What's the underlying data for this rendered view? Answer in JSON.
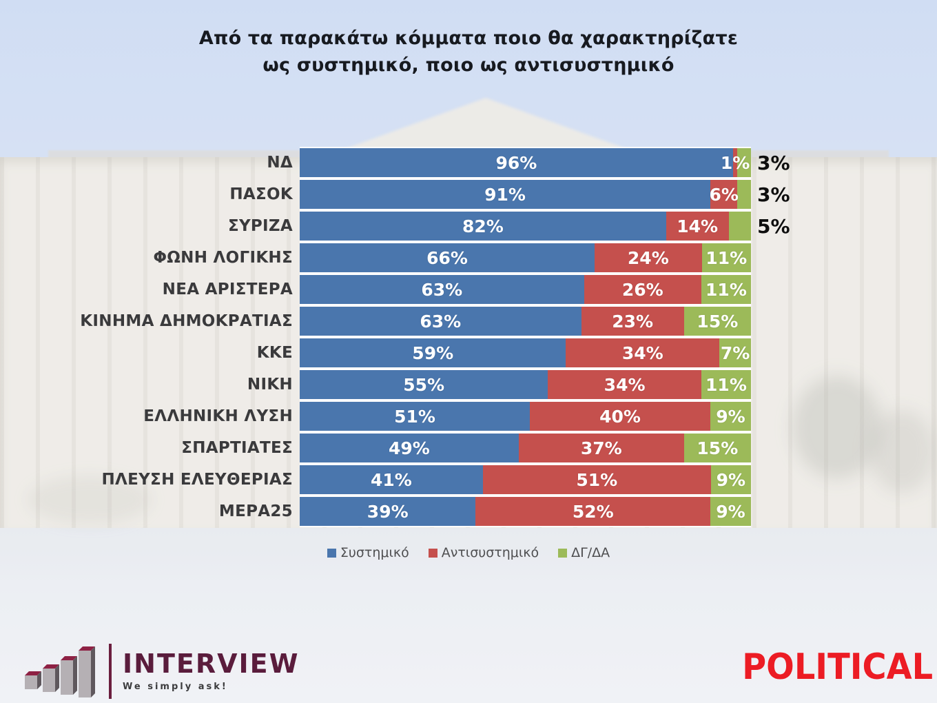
{
  "title": {
    "line1": "Από τα παρακάτω κόμματα ποιο θα χαρακτηρίζατε",
    "line2": "ως συστημικό, ποιο ως αντισυστημικό"
  },
  "chart_data": {
    "type": "bar",
    "orientation": "horizontal",
    "stacked": true,
    "grid": false,
    "legend_position": "bottom",
    "value_suffix": "%",
    "categories": [
      "ΝΔ",
      "ΠΑΣΟΚ",
      "ΣΥΡΙΖΑ",
      "ΦΩΝΗ ΛΟΓΙΚΗΣ",
      "ΝΕΑ ΑΡΙΣΤΕΡΑ",
      "ΚΙΝΗΜΑ ΔΗΜΟΚΡΑΤΙΑΣ",
      "ΚΚΕ",
      "ΝΙΚΗ",
      "ΕΛΛΗΝΙΚΗ ΛΥΣΗ",
      "ΣΠΑΡΤΙΑΤΕΣ",
      "ΠΛΕΥΣΗ ΕΛΕΥΘΕΡΙΑΣ",
      "ΜΕΡΑ25"
    ],
    "series": [
      {
        "name": "Συστημικό",
        "color": "#4a76ad",
        "values": [
          96,
          91,
          82,
          66,
          63,
          63,
          59,
          55,
          51,
          49,
          41,
          39
        ]
      },
      {
        "name": "Αντισυστημικό",
        "color": "#c5504d",
        "values": [
          1,
          6,
          14,
          24,
          26,
          23,
          34,
          34,
          40,
          37,
          51,
          52
        ]
      },
      {
        "name": "ΔΓ/ΔΑ",
        "color": "#9cba59",
        "values": [
          3,
          3,
          5,
          11,
          11,
          15,
          7,
          11,
          9,
          15,
          9,
          9
        ]
      }
    ],
    "outside_label_series_index": 2,
    "outside_label_rows": [
      0,
      1,
      2
    ],
    "inside_label_color": "#ffffff",
    "outside_label_color": "#0e0e0e"
  },
  "footer": {
    "interview": {
      "name": "INTERVIEW",
      "tagline": "We simply ask!"
    },
    "political": {
      "name": "POLITICAL"
    }
  },
  "logo_colors": {
    "interview_maroon": "#5a1c3c",
    "interview_bar_top": "#8e2144",
    "interview_bar_front": "#b5b0b4",
    "interview_bar_side": "#5f585d",
    "political_red": "#ec1c24"
  }
}
